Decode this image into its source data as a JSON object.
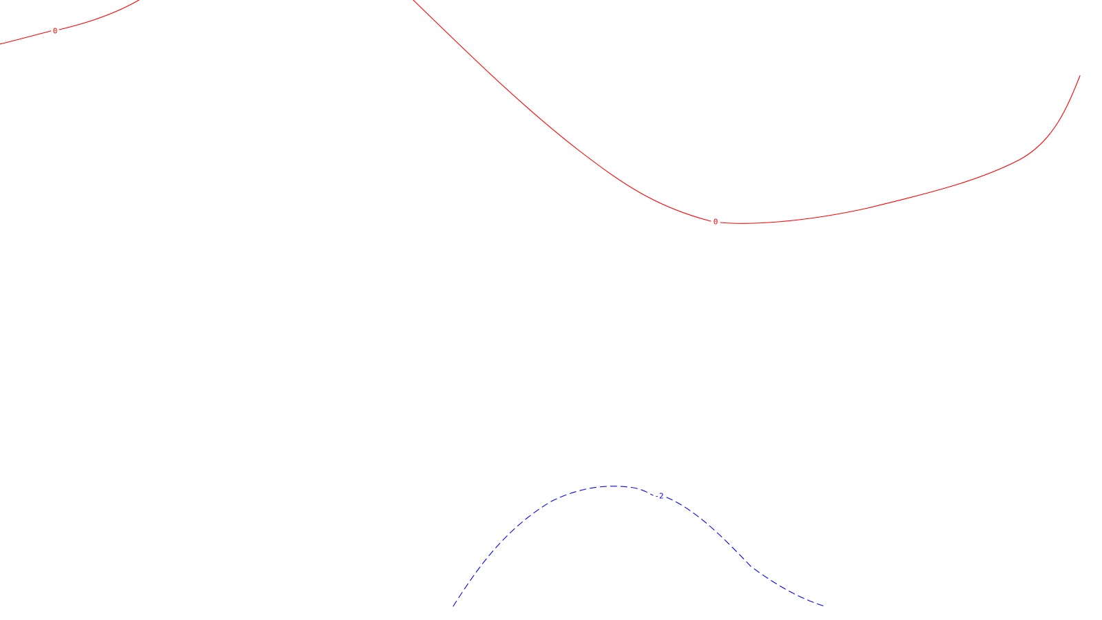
{
  "contours": [
    {
      "id": "contour-0-west",
      "level_label": "0",
      "color": "#ff0000",
      "style": "solid"
    },
    {
      "id": "contour-0-east",
      "level_label": "0",
      "color": "#ff0000",
      "style": "solid"
    },
    {
      "id": "contour-minus-2",
      "level_label": "-2",
      "color": "#0000ff",
      "style": "dashed"
    }
  ]
}
